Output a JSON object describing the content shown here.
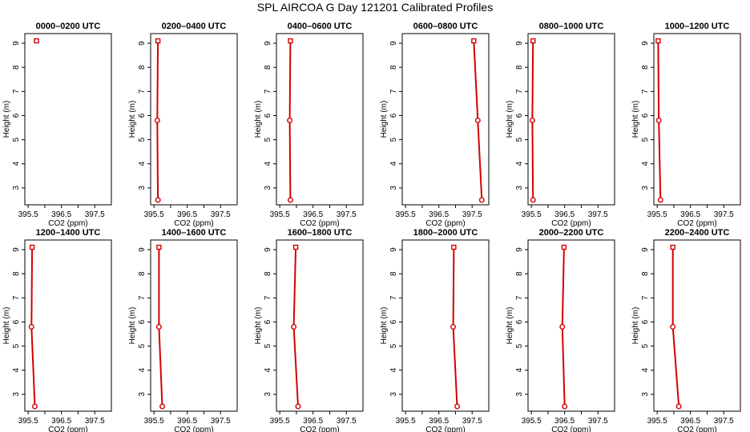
{
  "title": "SPL AIRCOA G  Day 121201  Calibrated Profiles",
  "chart_data": {
    "type": "line",
    "xlabel": "CO2 (ppm)",
    "ylabel": "Height (m)",
    "xlim": [
      395.4,
      398.0
    ],
    "ylim": [
      2.3,
      9.4
    ],
    "xticks": [
      "395.5",
      "396.5",
      "397.5"
    ],
    "yticks": [
      "3",
      "4",
      "5",
      "6",
      "7",
      "8",
      "9"
    ],
    "line_color": "#d40000",
    "panels": [
      {
        "title": "0000–0200 UTC",
        "points": [
          {
            "x": 395.75,
            "y": 9.1
          }
        ]
      },
      {
        "title": "0200–0400 UTC",
        "points": [
          {
            "x": 395.62,
            "y": 9.1
          },
          {
            "x": 395.6,
            "y": 5.8
          },
          {
            "x": 395.62,
            "y": 2.5
          }
        ]
      },
      {
        "title": "0400–0600 UTC",
        "points": [
          {
            "x": 395.82,
            "y": 9.1
          },
          {
            "x": 395.8,
            "y": 5.8
          },
          {
            "x": 395.82,
            "y": 2.5
          }
        ]
      },
      {
        "title": "0600–0800 UTC",
        "points": [
          {
            "x": 397.55,
            "y": 9.1
          },
          {
            "x": 397.67,
            "y": 5.8
          },
          {
            "x": 397.79,
            "y": 2.5
          }
        ]
      },
      {
        "title": "0800–1000 UTC",
        "points": [
          {
            "x": 395.55,
            "y": 9.1
          },
          {
            "x": 395.53,
            "y": 5.8
          },
          {
            "x": 395.55,
            "y": 2.5
          }
        ]
      },
      {
        "title": "1000–1200 UTC",
        "points": [
          {
            "x": 395.53,
            "y": 9.1
          },
          {
            "x": 395.55,
            "y": 5.8
          },
          {
            "x": 395.6,
            "y": 2.5
          }
        ]
      },
      {
        "title": "1200–1400 UTC",
        "points": [
          {
            "x": 395.62,
            "y": 9.1
          },
          {
            "x": 395.6,
            "y": 5.8
          },
          {
            "x": 395.7,
            "y": 2.5
          }
        ]
      },
      {
        "title": "1400–1600 UTC",
        "points": [
          {
            "x": 395.65,
            "y": 9.1
          },
          {
            "x": 395.65,
            "y": 5.8
          },
          {
            "x": 395.75,
            "y": 2.5
          }
        ]
      },
      {
        "title": "1600–1800 UTC",
        "points": [
          {
            "x": 395.98,
            "y": 9.1
          },
          {
            "x": 395.92,
            "y": 5.8
          },
          {
            "x": 396.05,
            "y": 2.5
          }
        ]
      },
      {
        "title": "1800–2000 UTC",
        "points": [
          {
            "x": 396.95,
            "y": 9.1
          },
          {
            "x": 396.93,
            "y": 5.8
          },
          {
            "x": 397.05,
            "y": 2.5
          }
        ]
      },
      {
        "title": "2000–2200 UTC",
        "points": [
          {
            "x": 396.48,
            "y": 9.1
          },
          {
            "x": 396.43,
            "y": 5.8
          },
          {
            "x": 396.5,
            "y": 2.5
          }
        ]
      },
      {
        "title": "2200–2400 UTC",
        "points": [
          {
            "x": 395.97,
            "y": 9.1
          },
          {
            "x": 395.97,
            "y": 5.8
          },
          {
            "x": 396.15,
            "y": 2.5
          }
        ]
      }
    ]
  }
}
